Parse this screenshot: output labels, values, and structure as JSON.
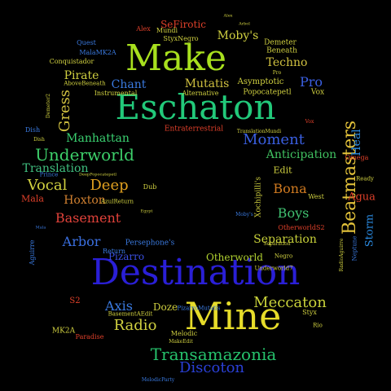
{
  "background": "#000000",
  "words": [
    {
      "text": "Destination",
      "color": "#2a1fd6"
    },
    {
      "text": "Mine",
      "color": "#e6dc2a"
    },
    {
      "text": "Eschaton",
      "color": "#22c97a"
    },
    {
      "text": "Make",
      "color": "#a8e01e"
    },
    {
      "text": "Beatmasters",
      "color": "#e3c23a"
    },
    {
      "text": "Transamazonia",
      "color": "#26c26c"
    },
    {
      "text": "Underworld",
      "color": "#3dcf6a"
    },
    {
      "text": "Meccaton",
      "color": "#c9d23a"
    },
    {
      "text": "Discoton",
      "color": "#2a40d6"
    },
    {
      "text": "Basement",
      "color": "#e0423a"
    },
    {
      "text": "Moment",
      "color": "#3a5fe0"
    },
    {
      "text": "Separation",
      "color": "#c7d03a"
    },
    {
      "text": "Deep",
      "color": "#e0a020"
    },
    {
      "text": "Vocal",
      "color": "#d0d040"
    },
    {
      "text": "Arbor",
      "color": "#3a6fe0"
    },
    {
      "text": "Radio",
      "color": "#d0d040"
    },
    {
      "text": "Bona",
      "color": "#d07a20"
    },
    {
      "text": "Boys",
      "color": "#40c070"
    },
    {
      "text": "Axis",
      "color": "#3a7ae0"
    },
    {
      "text": "Otherworld",
      "color": "#b0d030"
    },
    {
      "text": "Pizarro",
      "color": "#3a4fe0"
    },
    {
      "text": "Manhattan",
      "color": "#3ad070"
    },
    {
      "text": "Hoxton",
      "color": "#d08030"
    },
    {
      "text": "Translation",
      "color": "#40c080"
    },
    {
      "text": "Gress",
      "color": "#d0c040"
    },
    {
      "text": "Anticipation",
      "color": "#40c060"
    },
    {
      "text": "Pro",
      "color": "#3a5fe0"
    },
    {
      "text": "Techno",
      "color": "#d0c040"
    },
    {
      "text": "Mutatis",
      "color": "#d0c040"
    },
    {
      "text": "Chant",
      "color": "#3a7ae0"
    },
    {
      "text": "Pirate",
      "color": "#d0d040"
    },
    {
      "text": "Moby's",
      "color": "#d0d040"
    },
    {
      "text": "SeFirotic",
      "color": "#e0402a"
    },
    {
      "text": "Heal",
      "color": "#2a8ae0"
    },
    {
      "text": "Storm",
      "color": "#2a8ae0"
    },
    {
      "text": "Agua",
      "color": "#e0402a"
    },
    {
      "text": "Doze",
      "color": "#d0d040"
    },
    {
      "text": "Edit",
      "color": "#d0d040"
    },
    {
      "text": "Mala",
      "color": "#e0402a"
    },
    {
      "text": "Asymptotic",
      "color": "#d0d040"
    },
    {
      "text": "Beneath",
      "color": "#d0d040"
    },
    {
      "text": "Demeter",
      "color": "#d0d040"
    },
    {
      "text": "Popocatepetl",
      "color": "#d0d040"
    },
    {
      "text": "Conquistador",
      "color": "#d0d040"
    },
    {
      "text": "Instrumental",
      "color": "#d0d040"
    },
    {
      "text": "Alternative",
      "color": "#d0d040"
    },
    {
      "text": "Entraterrestrial",
      "color": "#e0402a"
    },
    {
      "text": "Xochipilli's",
      "color": "#d0d040"
    },
    {
      "text": "Persephone's",
      "color": "#3a7ae0"
    },
    {
      "text": "Return",
      "color": "#3a7ae0"
    },
    {
      "text": "Prince",
      "color": "#3a7ae0"
    },
    {
      "text": "Aguirre",
      "color": "#3a7ae0"
    },
    {
      "text": "Omega",
      "color": "#e0402a"
    },
    {
      "text": "Ready",
      "color": "#d0d040"
    },
    {
      "text": "Neptune",
      "color": "#3a7ae0"
    },
    {
      "text": "Styx",
      "color": "#d0d040"
    },
    {
      "text": "Rio",
      "color": "#d0d040"
    },
    {
      "text": "Negro",
      "color": "#d0d040"
    },
    {
      "text": "Melodic",
      "color": "#d0d040"
    },
    {
      "text": "MK2A",
      "color": "#d0d040"
    },
    {
      "text": "S2",
      "color": "#e0402a"
    },
    {
      "text": "Alex",
      "color": "#e0402a"
    },
    {
      "text": "Mundi",
      "color": "#d0d040"
    },
    {
      "text": "Dub",
      "color": "#d0d040"
    },
    {
      "text": "Vox",
      "color": "#d0d040"
    },
    {
      "text": "Dish",
      "color": "#3a7ae0"
    },
    {
      "text": "Quest",
      "color": "#3a7ae0"
    },
    {
      "text": "West",
      "color": "#d0d040"
    },
    {
      "text": "StyxNegro",
      "color": "#d0d040"
    },
    {
      "text": "MalaMK2A",
      "color": "#3a7ae0"
    },
    {
      "text": "Demeter2",
      "color": "#d0d040"
    },
    {
      "text": "AboveBeneath",
      "color": "#d0d040"
    },
    {
      "text": "PizarroMutatis",
      "color": "#3a7ae0"
    },
    {
      "text": "BasementAEdit",
      "color": "#d0d040"
    },
    {
      "text": "MakeEdit",
      "color": "#d0d040"
    },
    {
      "text": "MelodicParty",
      "color": "#3a7ae0"
    },
    {
      "text": "Paradise",
      "color": "#e0402a"
    },
    {
      "text": "Underworld7",
      "color": "#d0d040"
    },
    {
      "text": "OtherworldS2",
      "color": "#e0402a"
    },
    {
      "text": "RadioAguirre",
      "color": "#d0d040"
    },
    {
      "text": "TranslationMundi",
      "color": "#d0d040"
    },
    {
      "text": "AzulReturn",
      "color": "#d0d040"
    },
    {
      "text": "Arbol",
      "color": "#d0d040"
    },
    {
      "text": "Egypt",
      "color": "#d0d040"
    },
    {
      "text": "Mala",
      "color": "#3a7ae0"
    },
    {
      "text": "DeepPopocatepetl",
      "color": "#d0d040"
    },
    {
      "text": "Separation",
      "color": "#d0d040"
    },
    {
      "text": "Alex",
      "color": "#d0d040"
    },
    {
      "text": "Vox",
      "color": "#e0402a"
    },
    {
      "text": "Moby's",
      "color": "#3a7ae0"
    },
    {
      "text": "Pro",
      "color": "#d0d040"
    },
    {
      "text": "Dish",
      "color": "#d0d040"
    }
  ]
}
